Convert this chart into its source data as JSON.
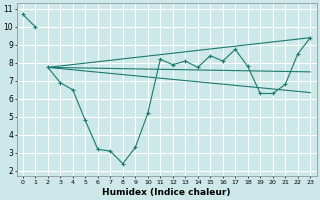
{
  "xlabel": "Humidex (Indice chaleur)",
  "bg_color": "#cce8e8",
  "grid_color": "#ffffff",
  "line_color": "#1a7a6e",
  "xlim": [
    -0.5,
    23.5
  ],
  "ylim": [
    1.7,
    11.3
  ],
  "xticks": [
    0,
    1,
    2,
    3,
    4,
    5,
    6,
    7,
    8,
    9,
    10,
    11,
    12,
    13,
    14,
    15,
    16,
    17,
    18,
    19,
    20,
    21,
    22,
    23
  ],
  "yticks": [
    2,
    3,
    4,
    5,
    6,
    7,
    8,
    9,
    10,
    11
  ],
  "curve1_x": [
    0,
    1
  ],
  "curve1_y": [
    10.7,
    10.0
  ],
  "curve2_x": [
    2,
    3,
    4,
    5,
    6,
    7,
    8,
    9,
    10,
    11,
    12,
    13,
    14,
    15,
    16,
    17,
    18,
    19,
    20,
    21,
    22,
    23
  ],
  "curve2_y": [
    7.75,
    6.9,
    6.5,
    4.8,
    3.2,
    3.1,
    2.4,
    3.3,
    5.2,
    8.2,
    7.9,
    8.1,
    7.75,
    8.4,
    8.1,
    8.75,
    7.8,
    6.3,
    6.3,
    6.8,
    8.5,
    9.4
  ],
  "trend_lines": [
    {
      "x": [
        2,
        23
      ],
      "y": [
        7.75,
        7.5
      ]
    },
    {
      "x": [
        2,
        23
      ],
      "y": [
        7.75,
        9.4
      ]
    },
    {
      "x": [
        2,
        23
      ],
      "y": [
        7.75,
        6.35
      ]
    }
  ]
}
